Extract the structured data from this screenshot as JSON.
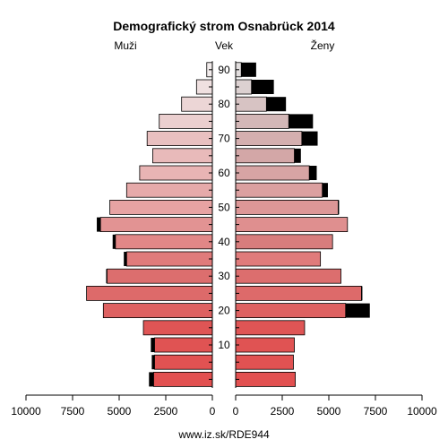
{
  "chart_data": {
    "type": "population-pyramid",
    "title": "Demografický strom Osnabrück 2014",
    "left_label": "Muži",
    "center_label": "Vek",
    "right_label": "Ženy",
    "footer": "www.iz.sk/RDE944",
    "x_max": 10000,
    "x_ticks": [
      10000,
      7500,
      5000,
      2500,
      0
    ],
    "x_tick_labels_left": [
      "10000",
      "7500",
      "5000",
      "2500",
      "0"
    ],
    "x_tick_labels_right": [
      "0",
      "2500",
      "5000",
      "7500",
      "10000"
    ],
    "age_ticks": [
      10,
      20,
      30,
      40,
      50,
      60,
      70,
      80,
      90
    ],
    "age_groups": [
      "0-4",
      "5-9",
      "10-14",
      "15-19",
      "20-24",
      "25-29",
      "30-34",
      "35-39",
      "40-44",
      "45-49",
      "50-54",
      "55-59",
      "60-64",
      "65-69",
      "70-74",
      "75-79",
      "80-84",
      "85-89",
      "90+"
    ],
    "male_values": [
      3150,
      3100,
      3100,
      3700,
      5850,
      6750,
      5650,
      4600,
      5200,
      6000,
      5500,
      4600,
      3900,
      3200,
      3500,
      2850,
      1650,
      850,
      300
    ],
    "male_excess": [
      250,
      150,
      200,
      0,
      0,
      0,
      50,
      150,
      150,
      200,
      0,
      0,
      0,
      0,
      0,
      0,
      0,
      0,
      0
    ],
    "female_values": [
      3200,
      3100,
      3150,
      3700,
      5900,
      6750,
      5650,
      4550,
      5200,
      6000,
      5500,
      4650,
      3950,
      3150,
      3550,
      2850,
      1650,
      850,
      300
    ],
    "female_excess": [
      0,
      0,
      0,
      0,
      1300,
      50,
      0,
      0,
      0,
      0,
      50,
      300,
      400,
      350,
      850,
      1300,
      1050,
      1200,
      800
    ],
    "colors": {
      "male": [
        "#e25050",
        "#e15252",
        "#e05353",
        "#df5555",
        "#de6161",
        "#dd6a6a",
        "#dc6e6e",
        "#e07b7b",
        "#e28787",
        "#e29393",
        "#e7a3a3",
        "#e6aaaa",
        "#e8b4b4",
        "#e8baba",
        "#e9c0c0",
        "#ebcfcf",
        "#ecd6d6",
        "#efe0e0",
        "#f2ecec"
      ],
      "female": [
        "#e25050",
        "#e15252",
        "#e05353",
        "#df5555",
        "#de6161",
        "#dd6a6a",
        "#dc6e6e",
        "#e07b7b",
        "#d87d7d",
        "#df8f8f",
        "#dd9797",
        "#dba0a0",
        "#d7a4a4",
        "#d3a7a7",
        "#d4afaf",
        "#d3b7b7",
        "#d7c3c3",
        "#dcd1d1",
        "#e2dede"
      ],
      "excess": "#000000"
    }
  }
}
